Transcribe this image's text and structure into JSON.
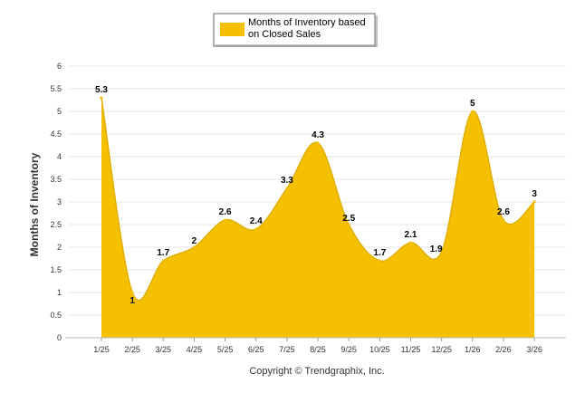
{
  "chart_data": {
    "type": "area",
    "categories": [
      "1/25",
      "2/25",
      "3/25",
      "4/25",
      "5/25",
      "6/25",
      "7/25",
      "8/25",
      "9/25",
      "10/25",
      "11/25",
      "12/25",
      "1/26",
      "2/26",
      "3/26"
    ],
    "series": [
      {
        "name": "Months of Inventory based on Closed Sales",
        "values": [
          5.3,
          1,
          1.7,
          2,
          2.6,
          2.4,
          3.3,
          4.3,
          2.5,
          1.7,
          2.1,
          1.9,
          5,
          2.6,
          3
        ],
        "color": "#F5C000"
      }
    ],
    "data_labels": [
      "5.3",
      "1",
      "1.7",
      "2",
      "2.6",
      "2.4",
      "3.3",
      "4.3",
      "2.5",
      "1.7",
      "2.1",
      "1.9",
      "5",
      "2.6",
      "3"
    ],
    "ylabel": "Months of Inventory",
    "xlabel": "",
    "ylim": [
      0,
      6
    ],
    "yticks": [
      "0",
      "0.5",
      "1",
      "1.5",
      "2",
      "2.5",
      "3",
      "3.5",
      "4",
      "4.5",
      "5",
      "5.5",
      "6"
    ],
    "legend": {
      "line1": "Months of Inventory based",
      "line2": "on Closed Sales",
      "placement": "top-center"
    },
    "grid": true,
    "footer": "Copyright © Trendgraphix, Inc."
  }
}
